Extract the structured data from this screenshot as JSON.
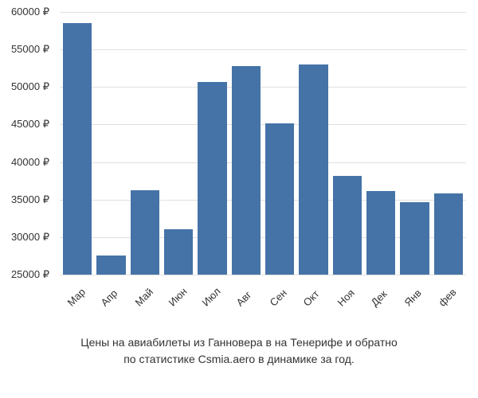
{
  "chart": {
    "type": "bar",
    "categories": [
      "Мар",
      "Апр",
      "Май",
      "Июн",
      "Июл",
      "Авг",
      "Сен",
      "Окт",
      "Ноя",
      "Дек",
      "Янв",
      "фев"
    ],
    "values": [
      58500,
      27500,
      36200,
      31000,
      50700,
      52800,
      45200,
      53000,
      38200,
      36100,
      34700,
      35800
    ],
    "bar_color": "#4573a7",
    "ylim": [
      25000,
      60000
    ],
    "ytick_step": 5000,
    "yticks": [
      25000,
      30000,
      35000,
      40000,
      45000,
      50000,
      55000,
      60000
    ],
    "ytick_labels": [
      "25000 ₽",
      "30000 ₽",
      "35000 ₽",
      "40000 ₽",
      "45000 ₽",
      "50000 ₽",
      "55000 ₽",
      "60000 ₽"
    ],
    "currency": "₽",
    "background_color": "#ffffff",
    "grid_color": "#e0e0e0",
    "label_fontsize": 13,
    "caption_fontsize": 14,
    "text_color": "#333333",
    "x_label_rotation": -45
  },
  "caption": {
    "line1": "Цены на авиабилеты из Ганновера в на Тенерифе и обратно",
    "line2": "по статистике Csmia.aero в динамике за год."
  }
}
